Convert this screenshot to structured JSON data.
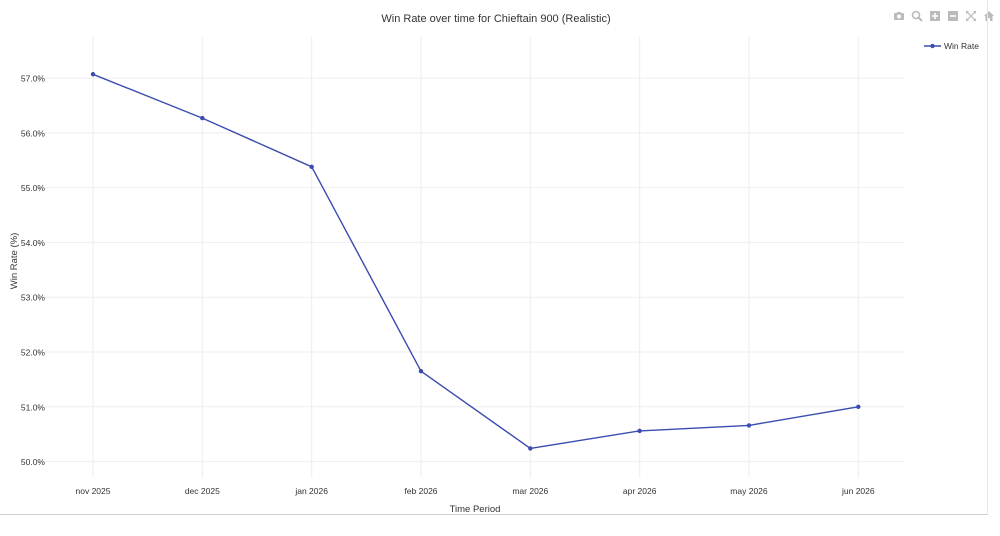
{
  "colors": {
    "line": "#3b4cb0",
    "grid": "#eeeeee",
    "text": "#333333",
    "toolbar": "#bbbbbb"
  },
  "toolbar": {
    "buttons": [
      "camera-icon",
      "zoom-icon",
      "zoom-in-icon",
      "zoom-out-icon",
      "autoscale-icon",
      "home-icon"
    ]
  },
  "chart_data": {
    "type": "line",
    "title": "Win Rate over time for Chieftain 900 (Realistic)",
    "xlabel": "Time Period",
    "ylabel": "Win Rate (%)",
    "categories": [
      "nov 2025",
      "dec 2025",
      "jan 2026",
      "feb 2026",
      "mar 2026",
      "apr 2026",
      "may 2026",
      "jun 2026"
    ],
    "series": [
      {
        "name": "Win Rate",
        "values": [
          57.07,
          56.27,
          55.38,
          51.65,
          50.24,
          50.56,
          50.66,
          51.0
        ]
      }
    ],
    "y_ticks": [
      "50.0%",
      "51.0%",
      "52.0%",
      "53.0%",
      "54.0%",
      "55.0%",
      "56.0%",
      "57.0%"
    ],
    "y_tick_values": [
      50,
      51,
      52,
      53,
      54,
      55,
      56,
      57
    ],
    "ylim": [
      49.7,
      57.75
    ],
    "grid": true,
    "legend_position": "top-right"
  }
}
